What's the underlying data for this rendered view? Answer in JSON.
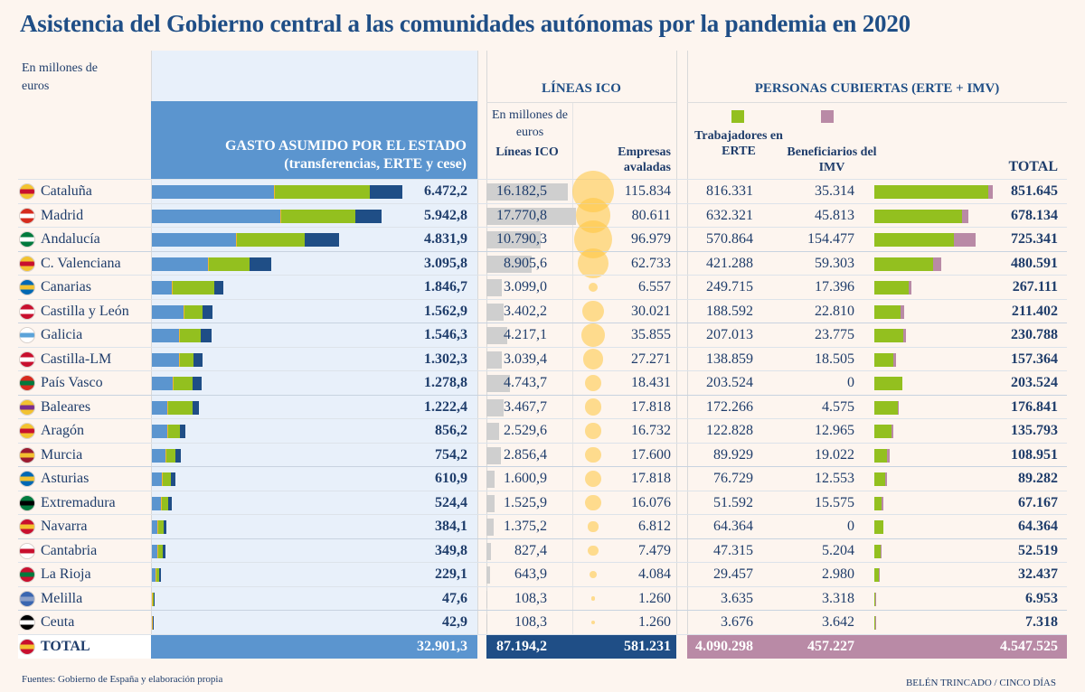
{
  "title": "Asistencia del Gobierno central a las comunidades autónomas por la pandemia en 2020",
  "unit_note": "En millones de euros",
  "colors": {
    "background": "#fdf5ef",
    "gasto_header": "#5b95cf",
    "gasto_segment_1": "#5b95cf",
    "gasto_segment_2": "#93c01f",
    "gasto_segment_3": "#1f4e86",
    "gasto_marker": "#f2b632",
    "ico_bar": "#cfcfcf",
    "bubble": "#ffc43c",
    "erte": "#93c01f",
    "imv": "#b98aa6",
    "total_ico": "#1f4e86",
    "total_personas": "#b98aa6",
    "text": "#1f3d6b"
  },
  "headers": {
    "gasto": "GASTO ASUMIDO POR EL ESTADO",
    "gasto_sub": "(transferencias, ERTE y cese)",
    "ico_section": "LÍNEAS ICO",
    "ico_unit": "En millones de euros",
    "ico_col": "Líneas ICO",
    "empresas_col": "Empresas avaladas",
    "personas_section": "PERSONAS CUBIERTAS (ERTE + IMV)",
    "erte_col": "Trabajadores en ERTE",
    "imv_col": "Beneficiarios del IMV",
    "total_col": "TOTAL"
  },
  "footer": {
    "source": "Fuentes: Gobierno de España y elaboración propia",
    "credit": "BELÉN TRINCADO / CINCO DÍAS"
  },
  "chart_data": {
    "type": "table",
    "rows": [
      {
        "region": "Cataluña",
        "flag": [
          "#f2c230",
          "#c8102e"
        ],
        "gasto": "6.472,2",
        "gasto_value": 6472.2,
        "gasto_segments": [
          3178,
          2454,
          840
        ],
        "ico": "16.182,5",
        "ico_value": 16182.5,
        "empresas": "115.834",
        "empresas_value": 115834,
        "erte": "816.331",
        "erte_value": 816331,
        "imv": "35.314",
        "imv_value": 35314,
        "total": "851.645"
      },
      {
        "region": "Madrid",
        "flag": [
          "#d52b1e",
          "#ffffff"
        ],
        "gasto": "5.942,8",
        "gasto_value": 5942.8,
        "gasto_segments": [
          3340,
          1915,
          688
        ],
        "ico": "17.770,8",
        "ico_value": 17770.8,
        "empresas": "80.611",
        "empresas_value": 80611,
        "erte": "632.321",
        "erte_value": 632321,
        "imv": "45.813",
        "imv_value": 45813,
        "total": "678.134"
      },
      {
        "region": "Andalucía",
        "flag": [
          "#007a3d",
          "#ffffff"
        ],
        "gasto": "4.831,9",
        "gasto_value": 4831.9,
        "gasto_segments": [
          2197,
          1753,
          882
        ],
        "ico": "10.790,3",
        "ico_value": 10790.3,
        "empresas": "96.979",
        "empresas_value": 96979,
        "erte": "570.864",
        "erte_value": 570864,
        "imv": "154.477",
        "imv_value": 154477,
        "total": "725.341"
      },
      {
        "region": "C. Valenciana",
        "flag": [
          "#f2c230",
          "#c8102e"
        ],
        "gasto": "3.095,8",
        "gasto_value": 3095.8,
        "gasto_segments": [
          1472,
          1052,
          572
        ],
        "ico": "8.905,6",
        "ico_value": 8905.6,
        "empresas": "62.733",
        "empresas_value": 62733,
        "erte": "421.288",
        "erte_value": 421288,
        "imv": "59.303",
        "imv_value": 59303,
        "total": "480.591"
      },
      {
        "region": "Canarias",
        "flag": [
          "#0068b3",
          "#f2c230"
        ],
        "gasto": "1.846,7",
        "gasto_value": 1846.7,
        "gasto_segments": [
          538,
          1075,
          234
        ],
        "ico": "3.099,0",
        "ico_value": 3099.0,
        "empresas": "6.557",
        "empresas_value": 6557,
        "erte": "249.715",
        "erte_value": 249715,
        "imv": "17.396",
        "imv_value": 17396,
        "total": "267.111"
      },
      {
        "region": "Castilla y León",
        "flag": [
          "#c8102e",
          "#ffffff"
        ],
        "gasto": "1.562,9",
        "gasto_value": 1562.9,
        "gasto_segments": [
          841,
          467,
          255
        ],
        "ico": "3.402,2",
        "ico_value": 3402.2,
        "empresas": "30.021",
        "empresas_value": 30021,
        "erte": "188.592",
        "erte_value": 188592,
        "imv": "22.810",
        "imv_value": 22810,
        "total": "211.402"
      },
      {
        "region": "Galicia",
        "flag": [
          "#ffffff",
          "#5ba3d9"
        ],
        "gasto": "1.546,3",
        "gasto_value": 1546.3,
        "gasto_segments": [
          724,
          538,
          284
        ],
        "ico": "4.217,1",
        "ico_value": 4217.1,
        "empresas": "35.855",
        "empresas_value": 35855,
        "erte": "207.013",
        "erte_value": 207013,
        "imv": "23.775",
        "imv_value": 23775,
        "total": "230.788"
      },
      {
        "region": "Castilla-LM",
        "flag": [
          "#c8102e",
          "#ffffff"
        ],
        "gasto": "1.302,3",
        "gasto_value": 1302.3,
        "gasto_segments": [
          724,
          351,
          227
        ],
        "ico": "3.039,4",
        "ico_value": 3039.4,
        "empresas": "27.271",
        "empresas_value": 27271,
        "erte": "138.859",
        "erte_value": 138859,
        "imv": "18.505",
        "imv_value": 18505,
        "total": "157.364"
      },
      {
        "region": "País Vasco",
        "flag": [
          "#d52b1e",
          "#007a3d"
        ],
        "gasto": "1.278,8",
        "gasto_value": 1278.8,
        "gasto_segments": [
          561,
          491,
          227
        ],
        "ico": "4.743,7",
        "ico_value": 4743.7,
        "empresas": "18.431",
        "empresas_value": 18431,
        "erte": "203.524",
        "erte_value": 203524,
        "imv": "0",
        "imv_value": 0,
        "total": "203.524"
      },
      {
        "region": "Baleares",
        "flag": [
          "#f2c230",
          "#7b2d8e"
        ],
        "gasto": "1.222,4",
        "gasto_value": 1222.4,
        "gasto_segments": [
          421,
          631,
          170
        ],
        "ico": "3.467,7",
        "ico_value": 3467.7,
        "empresas": "17.818",
        "empresas_value": 17818,
        "erte": "172.266",
        "erte_value": 172266,
        "imv": "4.575",
        "imv_value": 4575,
        "total": "176.841"
      },
      {
        "region": "Aragón",
        "flag": [
          "#f2c230",
          "#c8102e"
        ],
        "gasto": "856,2",
        "gasto_value": 856.2,
        "gasto_segments": [
          421,
          304,
          131
        ],
        "ico": "2.529,6",
        "ico_value": 2529.6,
        "empresas": "16.732",
        "empresas_value": 16732,
        "erte": "122.828",
        "erte_value": 122828,
        "imv": "12.965",
        "imv_value": 12965,
        "total": "135.793"
      },
      {
        "region": "Murcia",
        "flag": [
          "#9b1b30",
          "#f2c230"
        ],
        "gasto": "754,2",
        "gasto_value": 754.2,
        "gasto_segments": [
          374,
          234,
          146
        ],
        "ico": "2.856,4",
        "ico_value": 2856.4,
        "empresas": "17.600",
        "empresas_value": 17600,
        "erte": "89.929",
        "erte_value": 89929,
        "imv": "19.022",
        "imv_value": 19022,
        "total": "108.951"
      },
      {
        "region": "Asturias",
        "flag": [
          "#0068b3",
          "#f2c230"
        ],
        "gasto": "610,9",
        "gasto_value": 610.9,
        "gasto_segments": [
          280,
          210,
          121
        ],
        "ico": "1.600,9",
        "ico_value": 1600.9,
        "empresas": "17.818",
        "empresas_value": 17818,
        "erte": "76.729",
        "erte_value": 76729,
        "imv": "12.553",
        "imv_value": 12553,
        "total": "89.282"
      },
      {
        "region": "Extremadura",
        "flag": [
          "#007a3d",
          "#000000"
        ],
        "gasto": "524,4",
        "gasto_value": 524.4,
        "gasto_segments": [
          257,
          164,
          103
        ],
        "ico": "1.525,9",
        "ico_value": 1525.9,
        "empresas": "16.076",
        "empresas_value": 16076,
        "erte": "51.592",
        "erte_value": 51592,
        "imv": "15.575",
        "imv_value": 15575,
        "total": "67.167"
      },
      {
        "region": "Navarra",
        "flag": [
          "#c8102e",
          "#f2c230"
        ],
        "gasto": "384,1",
        "gasto_value": 384.1,
        "gasto_segments": [
          164,
          140,
          80
        ],
        "ico": "1.375,2",
        "ico_value": 1375.2,
        "empresas": "6.812",
        "empresas_value": 6812,
        "erte": "64.364",
        "erte_value": 64364,
        "imv": "0",
        "imv_value": 0,
        "total": "64.364"
      },
      {
        "region": "Cantabria",
        "flag": [
          "#ffffff",
          "#c8102e"
        ],
        "gasto": "349,8",
        "gasto_value": 349.8,
        "gasto_segments": [
          164,
          117,
          69
        ],
        "ico": "827,4",
        "ico_value": 827.4,
        "empresas": "7.479",
        "empresas_value": 7479,
        "erte": "47.315",
        "erte_value": 47315,
        "imv": "5.204",
        "imv_value": 5204,
        "total": "52.519"
      },
      {
        "region": "La Rioja",
        "flag": [
          "#c8102e",
          "#007a3d"
        ],
        "gasto": "229,1",
        "gasto_value": 229.1,
        "gasto_segments": [
          117,
          70,
          42
        ],
        "ico": "643,9",
        "ico_value": 643.9,
        "empresas": "4.084",
        "empresas_value": 4084,
        "erte": "29.457",
        "erte_value": 29457,
        "imv": "2.980",
        "imv_value": 2980,
        "total": "32.437"
      },
      {
        "region": "Melilla",
        "flag": [
          "#3a66b0",
          "#8a9fc8"
        ],
        "gasto": "47,6",
        "gasto_value": 47.6,
        "gasto_segments": [
          25,
          15,
          8
        ],
        "ico": "108,3",
        "ico_value": 108.3,
        "empresas": "1.260",
        "empresas_value": 1260,
        "erte": "3.635",
        "erte_value": 3635,
        "imv": "3.318",
        "imv_value": 3318,
        "total": "6.953"
      },
      {
        "region": "Ceuta",
        "flag": [
          "#000000",
          "#ffffff"
        ],
        "gasto": "42,9",
        "gasto_value": 42.9,
        "gasto_segments": [
          22,
          13,
          8
        ],
        "ico": "108,3",
        "ico_value": 108.3,
        "empresas": "1.260",
        "empresas_value": 1260,
        "erte": "3.676",
        "erte_value": 3676,
        "imv": "3.642",
        "imv_value": 3642,
        "total": "7.318"
      }
    ],
    "total": {
      "region": "TOTAL",
      "flag": [
        "#c8102e",
        "#f2c230"
      ],
      "gasto": "32.901,3",
      "ico": "87.194,2",
      "empresas": "581.231",
      "erte": "4.090.298",
      "imv": "457.227",
      "total": "4.547.525"
    }
  }
}
